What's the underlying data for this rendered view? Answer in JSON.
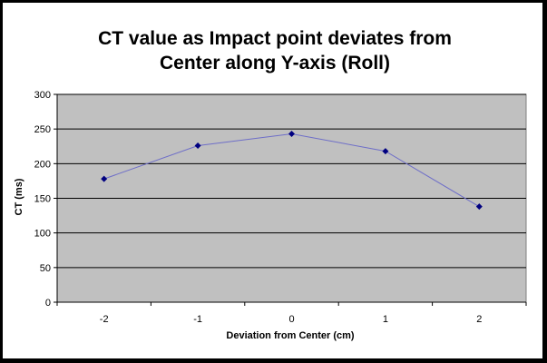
{
  "chart_data": {
    "type": "line",
    "title_lines": [
      "CT value as Impact point deviates from",
      "Center along Y-axis (Roll)"
    ],
    "xlabel": "Deviation from Center (cm)",
    "ylabel": "CT (ms)",
    "categories": [
      "-2",
      "-1",
      "0",
      "1",
      "2"
    ],
    "series": [
      {
        "values": [
          178,
          226,
          243,
          218,
          138
        ]
      }
    ],
    "ylim": [
      0,
      300
    ],
    "yticks": [
      "0",
      "50",
      "100",
      "150",
      "200",
      "250",
      "300"
    ],
    "grid": true,
    "legend": "none",
    "colors": {
      "plot_background": "#c0c0c0",
      "line": "#6e6ec8",
      "marker": "#000080",
      "gridline": "#000000",
      "frame": "#000000"
    }
  }
}
